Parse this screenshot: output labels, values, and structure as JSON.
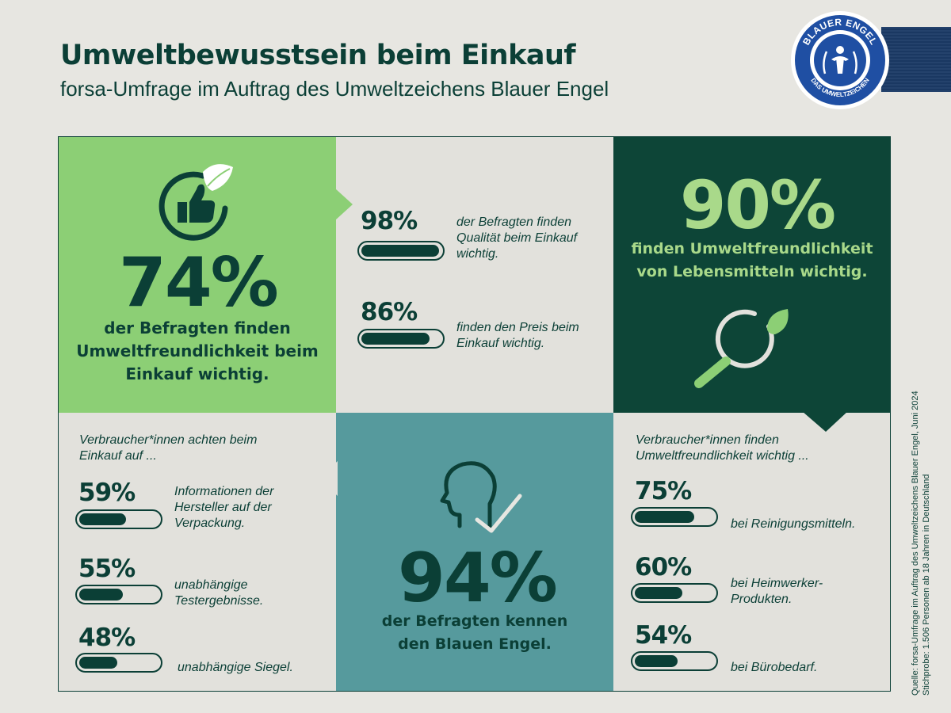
{
  "header": {
    "title": "Umweltbewusstsein beim Einkauf",
    "subtitle": "forsa-Umfrage im Auftrag des Umweltzeichens Blauer Engel"
  },
  "seal": {
    "top_text": "BLAUER ENGEL",
    "bottom_text": "DAS UMWELTZEICHEN",
    "color": "#1f4fa3"
  },
  "colors": {
    "dark_green": "#0b3f36",
    "light_green": "#8ccf75",
    "accent_green": "#a9d98a",
    "teal": "#569a9d",
    "background": "#e7e6e1"
  },
  "icons": [
    "thumbs-up-leaf-icon",
    "magnifier-leaf-icon",
    "head-check-icon"
  ],
  "chart_data": [
    {
      "type": "stat",
      "value": 74,
      "value_text": "74%",
      "label_lines": [
        "der Befragten finden",
        "Umweltfreundlichkeit beim",
        "Einkauf wichtig."
      ]
    },
    {
      "type": "bar",
      "series": [
        {
          "value": 98,
          "value_text": "98%",
          "label_lines": [
            "der Befragten finden",
            "Qualität beim Einkauf",
            "wichtig."
          ]
        },
        {
          "value": 86,
          "value_text": "86%",
          "label_lines": [
            "finden den Preis beim",
            "Einkauf wichtig."
          ]
        }
      ]
    },
    {
      "type": "stat",
      "value": 90,
      "value_text": "90%",
      "label_lines": [
        "finden Umweltfreundlichkeit",
        "von Lebensmitteln wichtig."
      ]
    },
    {
      "type": "bar",
      "title_lines": [
        "Verbraucher*innen achten beim",
        "Einkauf auf ..."
      ],
      "series": [
        {
          "value": 59,
          "value_text": "59%",
          "label_lines": [
            "Informationen der",
            "Hersteller auf der",
            "Verpackung."
          ]
        },
        {
          "value": 55,
          "value_text": "55%",
          "label_lines": [
            "unabhängige",
            "Testergebnisse."
          ]
        },
        {
          "value": 48,
          "value_text": "48%",
          "label_lines": [
            "unabhängige Siegel."
          ]
        }
      ]
    },
    {
      "type": "stat",
      "value": 94,
      "value_text": "94%",
      "label_lines": [
        "der Befragten kennen",
        "den Blauen Engel."
      ]
    },
    {
      "type": "bar",
      "title_lines": [
        "Verbraucher*innen finden",
        "Umweltfreundlichkeit wichtig ..."
      ],
      "series": [
        {
          "value": 75,
          "value_text": "75%",
          "label_lines": [
            "bei Reinigungsmitteln."
          ]
        },
        {
          "value": 60,
          "value_text": "60%",
          "label_lines": [
            "bei Heimwerker-",
            "Produkten."
          ]
        },
        {
          "value": 54,
          "value_text": "54%",
          "label_lines": [
            "bei Bürobedarf."
          ]
        }
      ]
    }
  ],
  "source": {
    "line1": "Quelle: forsa-Umfrage im Auftrag des Umweltzeichens Blauer Engel, Juni 2024",
    "line2": "Stichprobe: 1.506 Personen ab 18 Jahren in Deutschland"
  }
}
